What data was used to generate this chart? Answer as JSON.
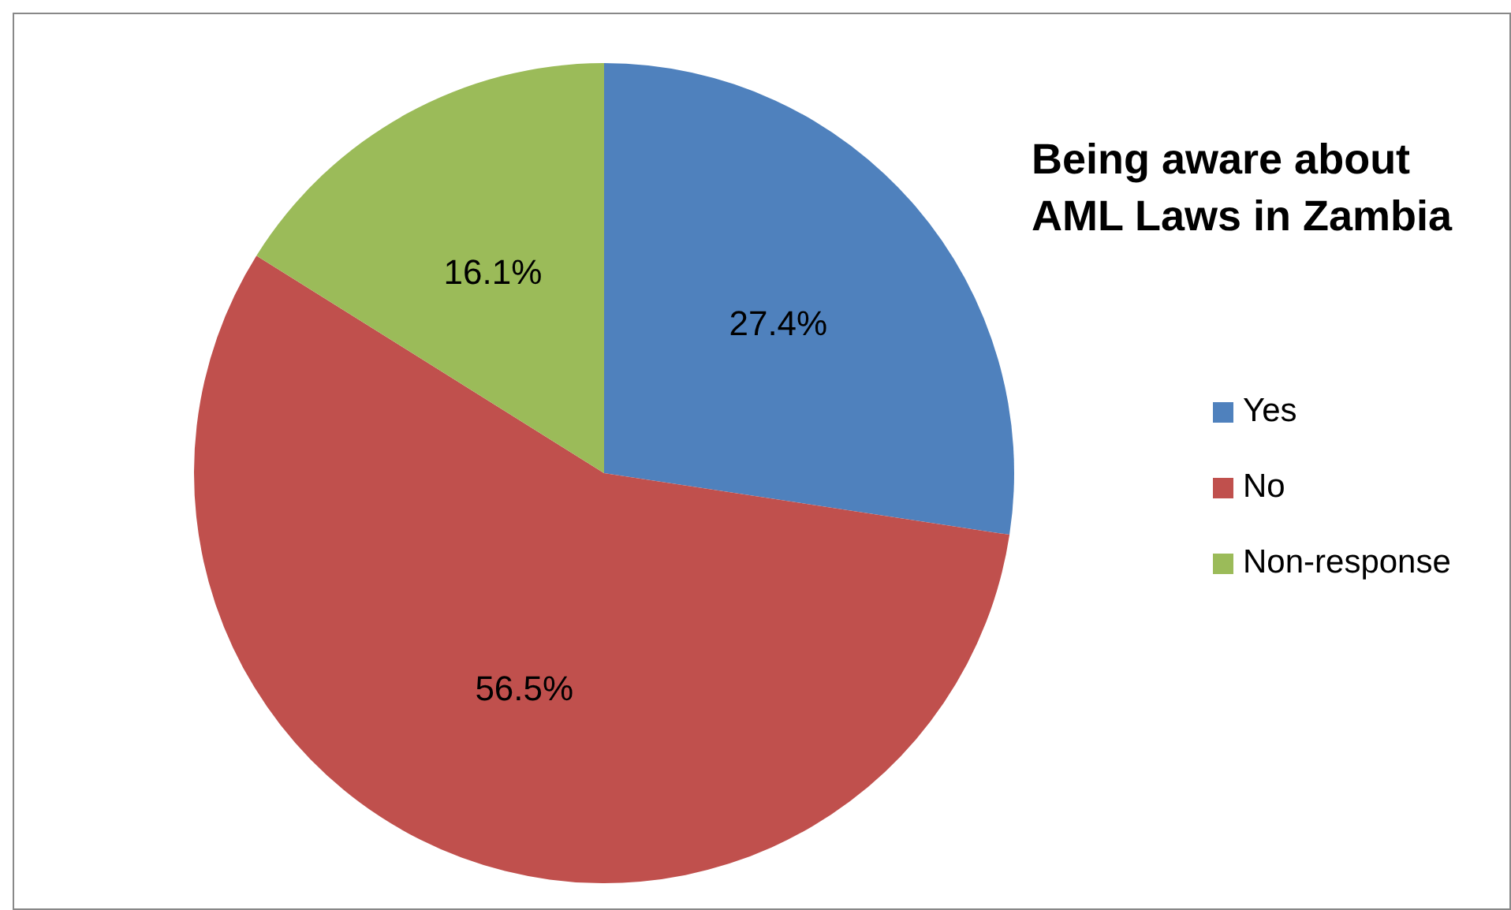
{
  "chart_data": {
    "type": "pie",
    "title": "Being aware about AML Laws in Zambia",
    "categories": [
      "Yes",
      "No",
      "Non-response"
    ],
    "values": [
      27.4,
      56.5,
      16.1
    ],
    "colors": [
      "#4f81bd",
      "#c0504d",
      "#9bbb59"
    ],
    "value_labels": [
      "27.4%",
      "56.5%",
      "16.1%"
    ],
    "legend": "right"
  }
}
